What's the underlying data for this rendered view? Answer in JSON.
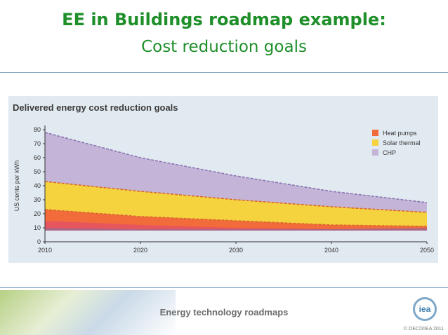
{
  "slide": {
    "title_line1": "EE in Buildings roadmap example:",
    "title_line2": "Cost reduction goals",
    "footer": "Energy technology roadmaps",
    "logo_text": "iea",
    "copyright": "© OECD/IEA 2011"
  },
  "chart_data": {
    "type": "area",
    "title": "Delivered energy cost reduction goals",
    "ylabel": "US cents per kWh",
    "xlabel": "",
    "x": [
      2010,
      2020,
      2030,
      2040,
      2050
    ],
    "xticks": [
      2010,
      2020,
      2030,
      2040,
      2050
    ],
    "yticks": [
      0,
      10,
      20,
      30,
      40,
      50,
      60,
      70,
      80
    ],
    "xlim": [
      2010,
      2050
    ],
    "ylim": [
      0,
      80
    ],
    "legend_position": "top-right",
    "series": [
      {
        "name": "Heat pumps",
        "color": "#f26b3a",
        "lower": [
          8,
          8,
          8,
          8,
          8
        ],
        "upper": [
          23,
          18,
          15,
          12,
          11
        ]
      },
      {
        "name": "Solar thermal",
        "color": "#f5d33f",
        "lower": [
          23,
          18,
          15,
          12,
          11
        ],
        "upper": [
          43,
          36,
          30,
          25,
          21
        ]
      },
      {
        "name": "CHP",
        "color": "#c4b5d8",
        "lower": [
          43,
          36,
          30,
          25,
          21
        ],
        "upper": [
          78,
          60,
          47,
          36,
          28
        ]
      }
    ],
    "inner_bands": [
      {
        "color": "#e0457a",
        "lower": [
          8,
          8,
          8,
          8,
          8
        ],
        "upper": [
          15,
          12,
          10,
          9,
          9
        ]
      },
      {
        "color": "#7b6fa8",
        "lower": [
          8,
          8,
          8,
          8,
          8
        ],
        "upper": [
          10,
          9,
          9,
          9,
          10
        ]
      }
    ],
    "grid": false
  }
}
